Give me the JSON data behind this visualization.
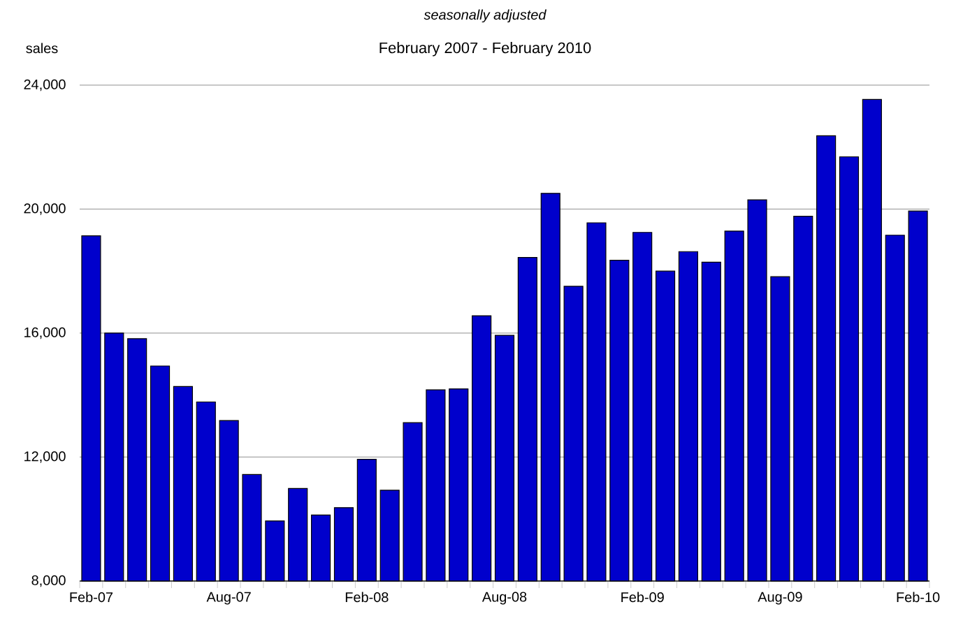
{
  "chart_data": {
    "type": "bar",
    "subtitle": "seasonally adjusted",
    "annotations": [
      "February 2007 - February 2010"
    ],
    "ylabel": "sales",
    "categories": [
      "Feb-07",
      null,
      null,
      null,
      null,
      null,
      "Aug-07",
      null,
      null,
      null,
      null,
      null,
      "Feb-08",
      null,
      null,
      null,
      null,
      null,
      "Aug-08",
      null,
      null,
      null,
      null,
      null,
      "Feb-09",
      null,
      null,
      null,
      null,
      null,
      "Aug-09",
      null,
      null,
      null,
      null,
      null,
      "Feb-10"
    ],
    "values": [
      19140,
      16000,
      15820,
      14940,
      14280,
      13780,
      13180,
      11440,
      9940,
      10990,
      10130,
      10370,
      11930,
      10930,
      13110,
      14170,
      14200,
      16560,
      15930,
      18440,
      20510,
      17510,
      19560,
      18350,
      19250,
      18000,
      18630,
      18290,
      19290,
      20300,
      17820,
      19770,
      22370,
      21690,
      23540,
      19160,
      19940
    ],
    "color": "#0000cc",
    "ylim": [
      8000,
      24000
    ],
    "yticks": [
      {
        "value": 8000,
        "label": "8,000"
      },
      {
        "value": 12000,
        "label": "12,000"
      },
      {
        "value": 16000,
        "label": "16,000"
      },
      {
        "value": 20000,
        "label": "20,000"
      },
      {
        "value": 24000,
        "label": "24,000"
      }
    ],
    "grid": "y"
  }
}
